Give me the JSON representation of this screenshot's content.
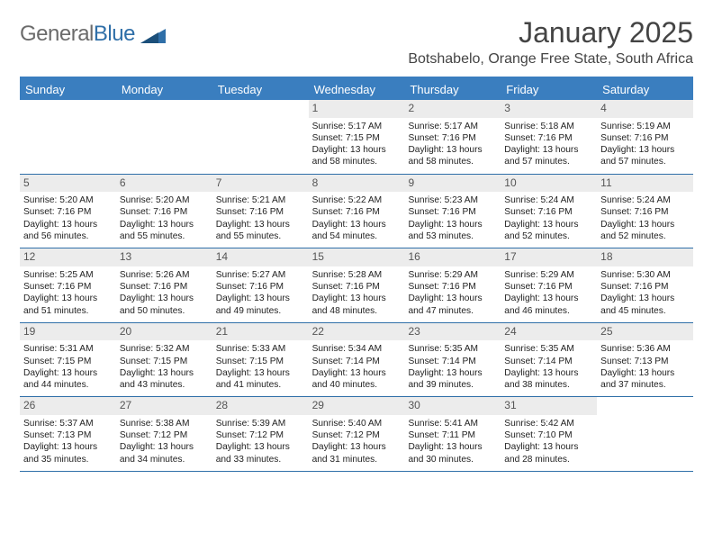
{
  "logo": {
    "general": "General",
    "blue": "Blue"
  },
  "title": "January 2025",
  "location": "Botshabelo, Orange Free State, South Africa",
  "colors": {
    "header_bar": "#3a7ebf",
    "week_divider": "#2f6fa8",
    "daynum_bg": "#ececec",
    "text": "#333333",
    "background": "#ffffff"
  },
  "typography": {
    "title_fontsize": 32,
    "location_fontsize": 16,
    "dow_fontsize": 13,
    "daynum_fontsize": 12,
    "detail_fontsize": 10.2
  },
  "days_of_week": [
    "Sunday",
    "Monday",
    "Tuesday",
    "Wednesday",
    "Thursday",
    "Friday",
    "Saturday"
  ],
  "weeks": [
    [
      {
        "n": "",
        "lines": []
      },
      {
        "n": "",
        "lines": []
      },
      {
        "n": "",
        "lines": []
      },
      {
        "n": "1",
        "lines": [
          "Sunrise: 5:17 AM",
          "Sunset: 7:15 PM",
          "Daylight: 13 hours",
          "and 58 minutes."
        ]
      },
      {
        "n": "2",
        "lines": [
          "Sunrise: 5:17 AM",
          "Sunset: 7:16 PM",
          "Daylight: 13 hours",
          "and 58 minutes."
        ]
      },
      {
        "n": "3",
        "lines": [
          "Sunrise: 5:18 AM",
          "Sunset: 7:16 PM",
          "Daylight: 13 hours",
          "and 57 minutes."
        ]
      },
      {
        "n": "4",
        "lines": [
          "Sunrise: 5:19 AM",
          "Sunset: 7:16 PM",
          "Daylight: 13 hours",
          "and 57 minutes."
        ]
      }
    ],
    [
      {
        "n": "5",
        "lines": [
          "Sunrise: 5:20 AM",
          "Sunset: 7:16 PM",
          "Daylight: 13 hours",
          "and 56 minutes."
        ]
      },
      {
        "n": "6",
        "lines": [
          "Sunrise: 5:20 AM",
          "Sunset: 7:16 PM",
          "Daylight: 13 hours",
          "and 55 minutes."
        ]
      },
      {
        "n": "7",
        "lines": [
          "Sunrise: 5:21 AM",
          "Sunset: 7:16 PM",
          "Daylight: 13 hours",
          "and 55 minutes."
        ]
      },
      {
        "n": "8",
        "lines": [
          "Sunrise: 5:22 AM",
          "Sunset: 7:16 PM",
          "Daylight: 13 hours",
          "and 54 minutes."
        ]
      },
      {
        "n": "9",
        "lines": [
          "Sunrise: 5:23 AM",
          "Sunset: 7:16 PM",
          "Daylight: 13 hours",
          "and 53 minutes."
        ]
      },
      {
        "n": "10",
        "lines": [
          "Sunrise: 5:24 AM",
          "Sunset: 7:16 PM",
          "Daylight: 13 hours",
          "and 52 minutes."
        ]
      },
      {
        "n": "11",
        "lines": [
          "Sunrise: 5:24 AM",
          "Sunset: 7:16 PM",
          "Daylight: 13 hours",
          "and 52 minutes."
        ]
      }
    ],
    [
      {
        "n": "12",
        "lines": [
          "Sunrise: 5:25 AM",
          "Sunset: 7:16 PM",
          "Daylight: 13 hours",
          "and 51 minutes."
        ]
      },
      {
        "n": "13",
        "lines": [
          "Sunrise: 5:26 AM",
          "Sunset: 7:16 PM",
          "Daylight: 13 hours",
          "and 50 minutes."
        ]
      },
      {
        "n": "14",
        "lines": [
          "Sunrise: 5:27 AM",
          "Sunset: 7:16 PM",
          "Daylight: 13 hours",
          "and 49 minutes."
        ]
      },
      {
        "n": "15",
        "lines": [
          "Sunrise: 5:28 AM",
          "Sunset: 7:16 PM",
          "Daylight: 13 hours",
          "and 48 minutes."
        ]
      },
      {
        "n": "16",
        "lines": [
          "Sunrise: 5:29 AM",
          "Sunset: 7:16 PM",
          "Daylight: 13 hours",
          "and 47 minutes."
        ]
      },
      {
        "n": "17",
        "lines": [
          "Sunrise: 5:29 AM",
          "Sunset: 7:16 PM",
          "Daylight: 13 hours",
          "and 46 minutes."
        ]
      },
      {
        "n": "18",
        "lines": [
          "Sunrise: 5:30 AM",
          "Sunset: 7:16 PM",
          "Daylight: 13 hours",
          "and 45 minutes."
        ]
      }
    ],
    [
      {
        "n": "19",
        "lines": [
          "Sunrise: 5:31 AM",
          "Sunset: 7:15 PM",
          "Daylight: 13 hours",
          "and 44 minutes."
        ]
      },
      {
        "n": "20",
        "lines": [
          "Sunrise: 5:32 AM",
          "Sunset: 7:15 PM",
          "Daylight: 13 hours",
          "and 43 minutes."
        ]
      },
      {
        "n": "21",
        "lines": [
          "Sunrise: 5:33 AM",
          "Sunset: 7:15 PM",
          "Daylight: 13 hours",
          "and 41 minutes."
        ]
      },
      {
        "n": "22",
        "lines": [
          "Sunrise: 5:34 AM",
          "Sunset: 7:14 PM",
          "Daylight: 13 hours",
          "and 40 minutes."
        ]
      },
      {
        "n": "23",
        "lines": [
          "Sunrise: 5:35 AM",
          "Sunset: 7:14 PM",
          "Daylight: 13 hours",
          "and 39 minutes."
        ]
      },
      {
        "n": "24",
        "lines": [
          "Sunrise: 5:35 AM",
          "Sunset: 7:14 PM",
          "Daylight: 13 hours",
          "and 38 minutes."
        ]
      },
      {
        "n": "25",
        "lines": [
          "Sunrise: 5:36 AM",
          "Sunset: 7:13 PM",
          "Daylight: 13 hours",
          "and 37 minutes."
        ]
      }
    ],
    [
      {
        "n": "26",
        "lines": [
          "Sunrise: 5:37 AM",
          "Sunset: 7:13 PM",
          "Daylight: 13 hours",
          "and 35 minutes."
        ]
      },
      {
        "n": "27",
        "lines": [
          "Sunrise: 5:38 AM",
          "Sunset: 7:12 PM",
          "Daylight: 13 hours",
          "and 34 minutes."
        ]
      },
      {
        "n": "28",
        "lines": [
          "Sunrise: 5:39 AM",
          "Sunset: 7:12 PM",
          "Daylight: 13 hours",
          "and 33 minutes."
        ]
      },
      {
        "n": "29",
        "lines": [
          "Sunrise: 5:40 AM",
          "Sunset: 7:12 PM",
          "Daylight: 13 hours",
          "and 31 minutes."
        ]
      },
      {
        "n": "30",
        "lines": [
          "Sunrise: 5:41 AM",
          "Sunset: 7:11 PM",
          "Daylight: 13 hours",
          "and 30 minutes."
        ]
      },
      {
        "n": "31",
        "lines": [
          "Sunrise: 5:42 AM",
          "Sunset: 7:10 PM",
          "Daylight: 13 hours",
          "and 28 minutes."
        ]
      },
      {
        "n": "",
        "lines": []
      }
    ]
  ]
}
